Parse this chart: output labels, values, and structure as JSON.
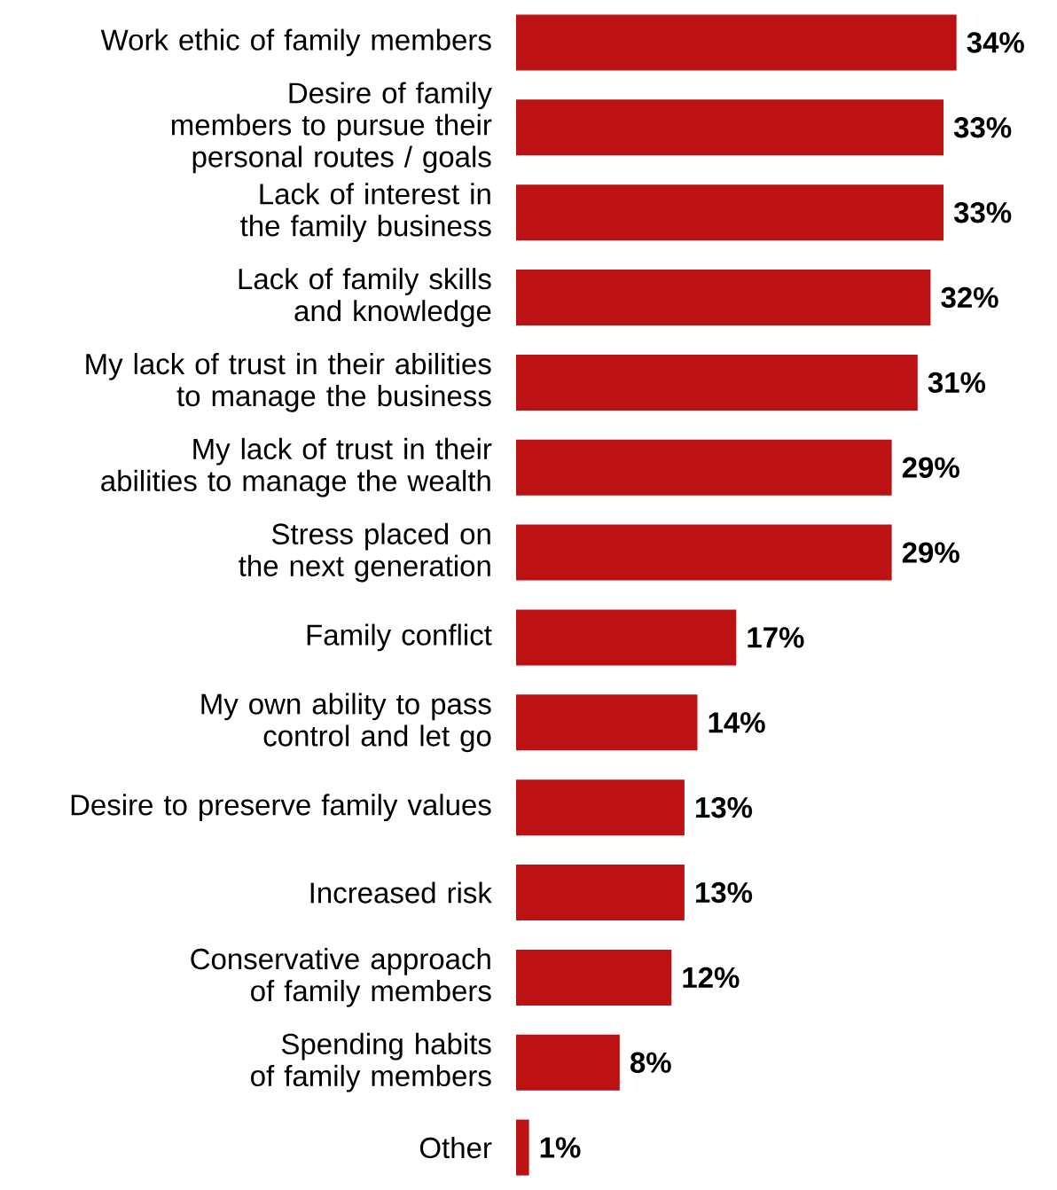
{
  "chart_data": {
    "type": "bar",
    "orientation": "horizontal",
    "color": "#bd1214",
    "categories": [
      "Work ethic of family members",
      "Desire of family members to pursue their personal routes / goals",
      "Lack of interest in the family business",
      "Lack of family skills and knowledge",
      "My lack of trust in their abilities to manage the business",
      "My lack of trust in their abilities to manage the wealth",
      "Stress placed on the next generation",
      "Family conflict",
      "My own ability to pass control and let go",
      "Desire to preserve family values",
      "Increased risk",
      "Conservative approach of family members",
      "Spending habits of family members",
      "Other"
    ],
    "values": [
      34,
      33,
      33,
      32,
      31,
      29,
      29,
      17,
      14,
      13,
      13,
      12,
      8,
      1
    ],
    "value_labels": [
      "34%",
      "33%",
      "33%",
      "32%",
      "31%",
      "29%",
      "29%",
      "17%",
      "14%",
      "13%",
      "13%",
      "12%",
      "8%",
      "1%"
    ]
  }
}
